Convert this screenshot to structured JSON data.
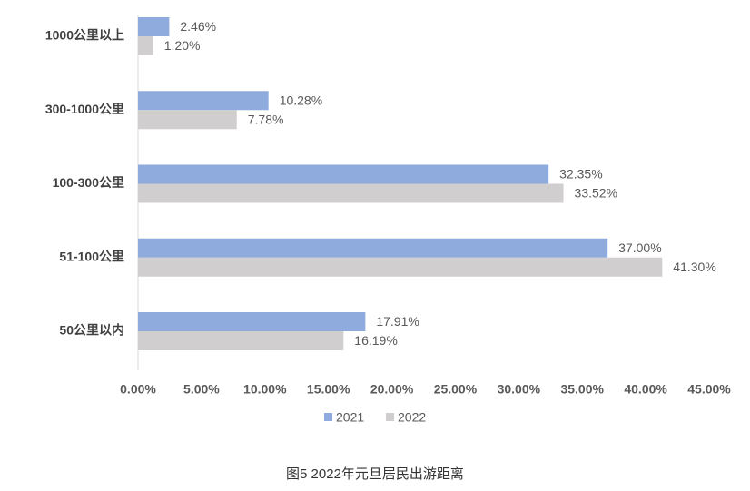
{
  "chart_data": {
    "type": "bar",
    "orientation": "horizontal",
    "caption": "图5  2022年元旦居民出游距离",
    "categories": [
      "1000公里以上",
      "300-1000公里",
      "100-300公里",
      "51-100公里",
      "50公里以内"
    ],
    "series": [
      {
        "name": "2021",
        "color": "#8faadc",
        "values": [
          2.46,
          10.28,
          32.35,
          37.0,
          17.91
        ],
        "value_labels": [
          "2.46%",
          "10.28%",
          "32.35%",
          "37.00%",
          "17.91%"
        ]
      },
      {
        "name": "2022",
        "color": "#d0cece",
        "values": [
          1.2,
          7.78,
          33.52,
          41.3,
          16.19
        ],
        "value_labels": [
          "1.20%",
          "7.78%",
          "33.52%",
          "41.30%",
          "16.19%"
        ]
      }
    ],
    "xlim": [
      0,
      45
    ],
    "xticks": [
      {
        "value": 0,
        "label": "0.00%"
      },
      {
        "value": 5,
        "label": "5.00%"
      },
      {
        "value": 10,
        "label": "10.00%"
      },
      {
        "value": 15,
        "label": "15.00%"
      },
      {
        "value": 20,
        "label": "20.00%"
      },
      {
        "value": 25,
        "label": "25.00%"
      },
      {
        "value": 30,
        "label": "30.00%"
      },
      {
        "value": 35,
        "label": "35.00%"
      },
      {
        "value": 40,
        "label": "40.00%"
      },
      {
        "value": 45,
        "label": "45.00%"
      }
    ],
    "legend": "bottom",
    "grid": false
  }
}
